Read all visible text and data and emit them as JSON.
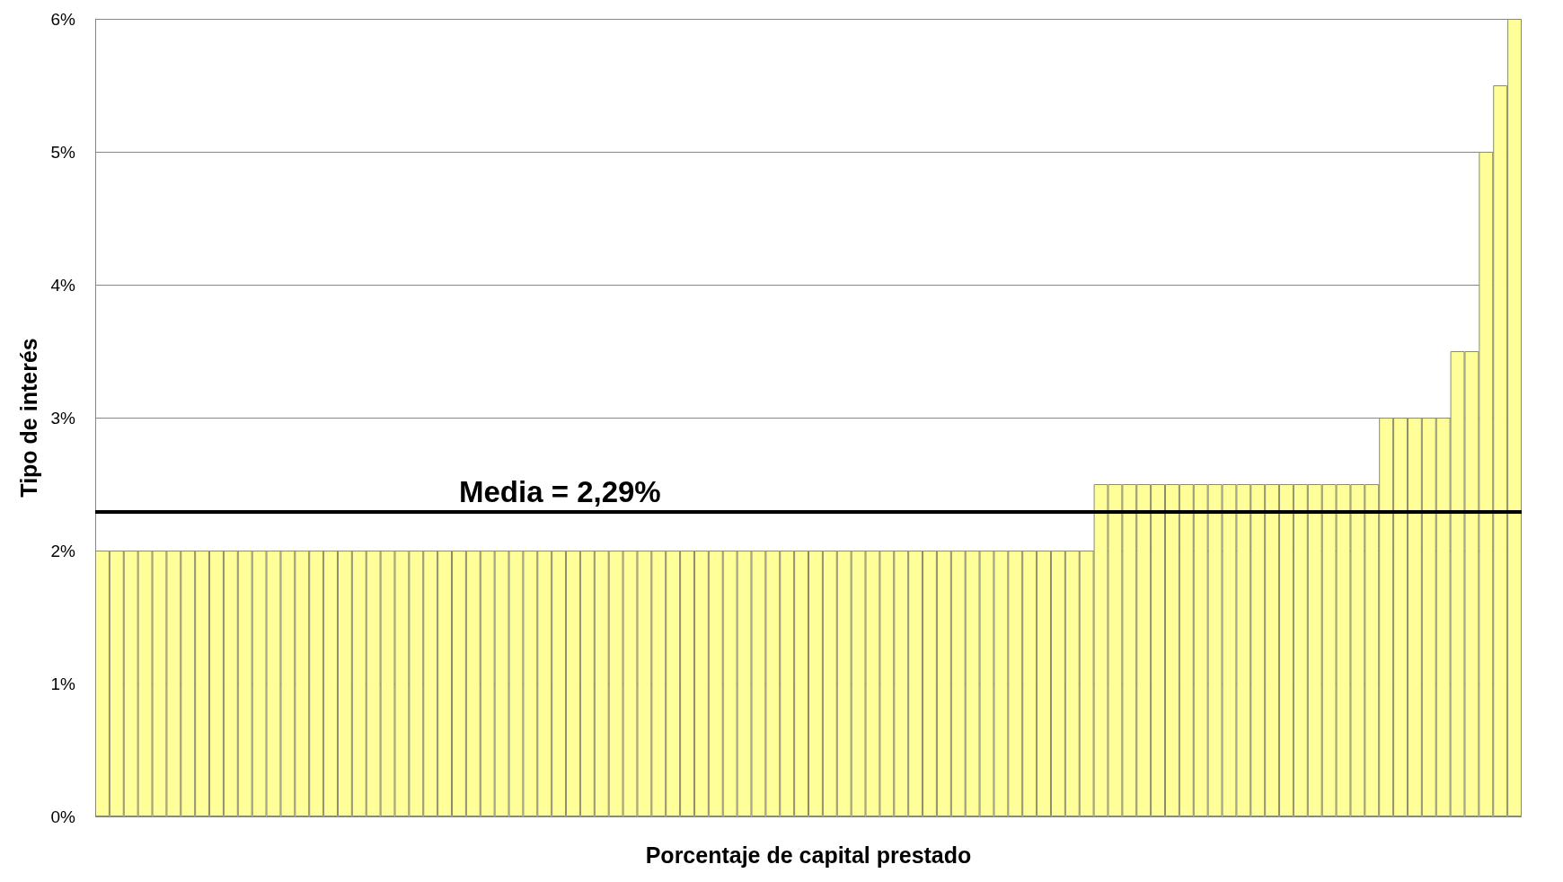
{
  "chart_data": {
    "type": "bar",
    "xlabel": "Porcentaje de capital prestado",
    "ylabel": "Tipo de interés",
    "categories": [
      null,
      null,
      null,
      null,
      null,
      null,
      null,
      null,
      null,
      null,
      null,
      null,
      null,
      null,
      null,
      null,
      null,
      null,
      null,
      null,
      null,
      null,
      null,
      null,
      null,
      null,
      null,
      null,
      null,
      null,
      null,
      null,
      null,
      null,
      null,
      null,
      null,
      null,
      null,
      null,
      null,
      null,
      null,
      null,
      null,
      null,
      null,
      null,
      null,
      null,
      null,
      null,
      null,
      null,
      null,
      null,
      null,
      null,
      null,
      null,
      null,
      null,
      null,
      null,
      null,
      null,
      null,
      null,
      null,
      null,
      null,
      null,
      null,
      null,
      null,
      null,
      null,
      null,
      null,
      null,
      null,
      null,
      null,
      null,
      null,
      null,
      null,
      null,
      null,
      null,
      null,
      null,
      null,
      null,
      null,
      null,
      null,
      null,
      null,
      null
    ],
    "values": [
      2,
      2,
      2,
      2,
      2,
      2,
      2,
      2,
      2,
      2,
      2,
      2,
      2,
      2,
      2,
      2,
      2,
      2,
      2,
      2,
      2,
      2,
      2,
      2,
      2,
      2,
      2,
      2,
      2,
      2,
      2,
      2,
      2,
      2,
      2,
      2,
      2,
      2,
      2,
      2,
      2,
      2,
      2,
      2,
      2,
      2,
      2,
      2,
      2,
      2,
      2,
      2,
      2,
      2,
      2,
      2,
      2,
      2,
      2,
      2,
      2,
      2,
      2,
      2,
      2,
      2,
      2,
      2,
      2,
      2,
      2.5,
      2.5,
      2.5,
      2.5,
      2.5,
      2.5,
      2.5,
      2.5,
      2.5,
      2.5,
      2.5,
      2.5,
      2.5,
      2.5,
      2.5,
      2.5,
      2.5,
      2.5,
      2.5,
      2.5,
      3,
      3,
      3,
      3,
      3,
      3.5,
      3.5,
      5,
      5.5,
      6
    ],
    "color": "#ffff99",
    "ylim": [
      0,
      6
    ],
    "yticks": [
      {
        "value": 0,
        "label": "0%"
      },
      {
        "value": 1,
        "label": "1%"
      },
      {
        "value": 2,
        "label": "2%"
      },
      {
        "value": 3,
        "label": "3%"
      },
      {
        "value": 4,
        "label": "4%"
      },
      {
        "value": 5,
        "label": "5%"
      },
      {
        "value": 6,
        "label": "6%"
      }
    ],
    "grid": "y",
    "ref_lines": [
      {
        "axis": "y",
        "value": 2.29,
        "label": "Media = 2,29%",
        "color": "#000000"
      }
    ]
  }
}
